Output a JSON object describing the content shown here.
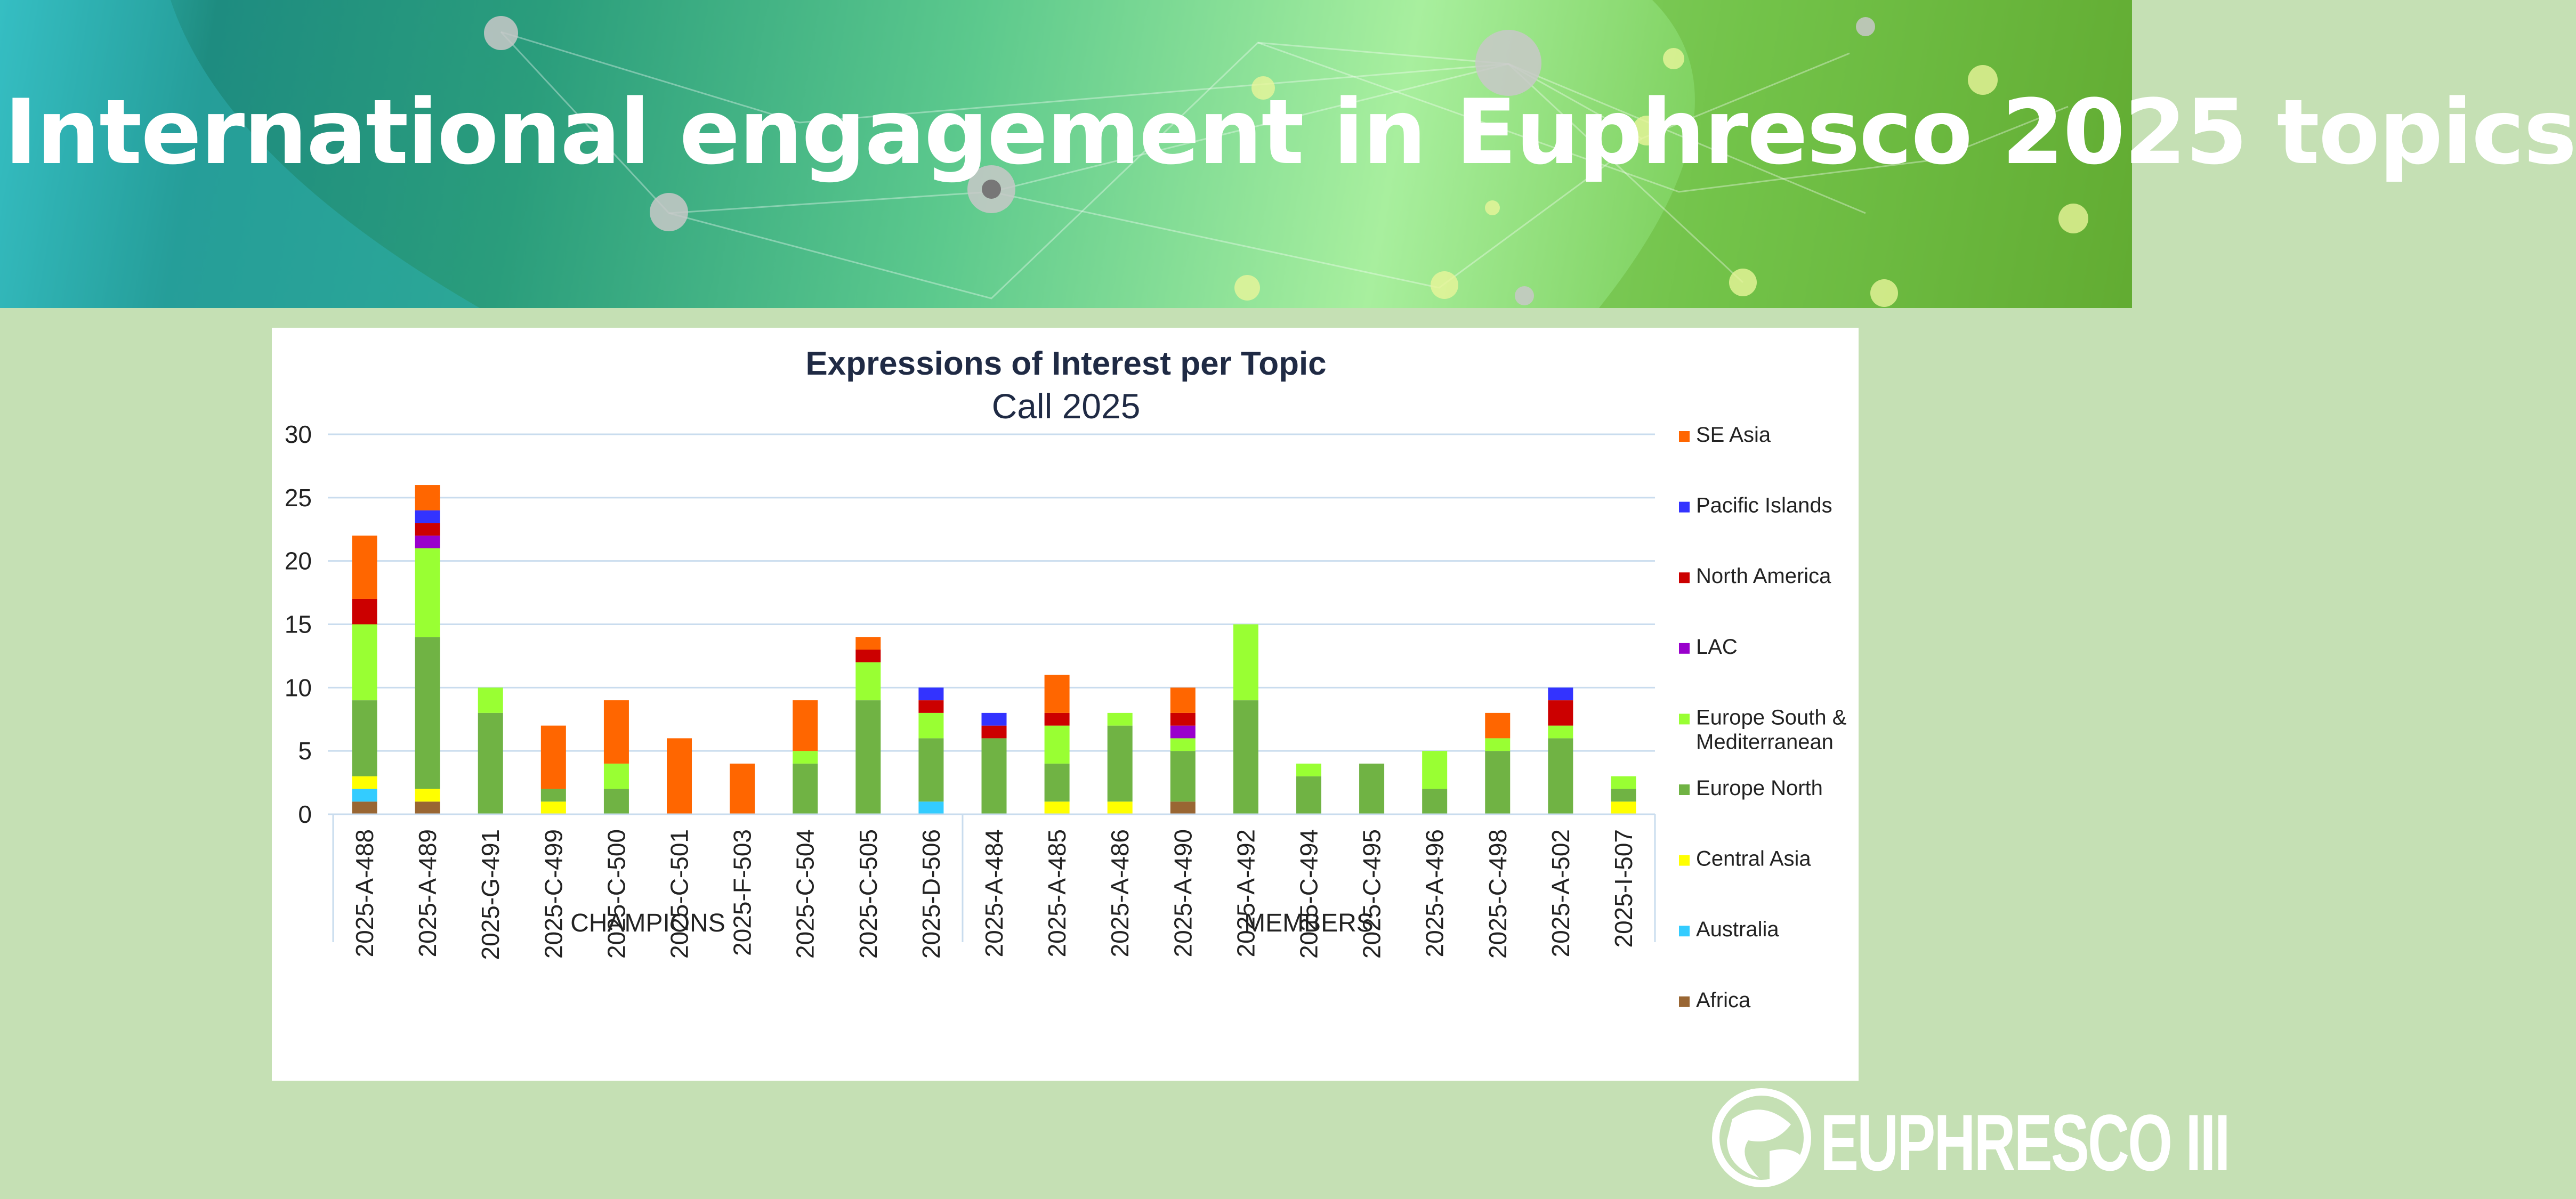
{
  "slide": {
    "title": "International engagement in Euphresco 2025 topics",
    "logo_text": "EUPHRESCO III"
  },
  "chart_data": {
    "type": "bar",
    "stacked": true,
    "title": "Expressions of Interest per Topic",
    "subtitle": "Call 2025",
    "xlabel": "",
    "ylabel": "",
    "ylim": [
      0,
      30
    ],
    "yticks": [
      0,
      5,
      10,
      15,
      20,
      25,
      30
    ],
    "grid": true,
    "legend_position": "right",
    "categories": [
      "2025-A-488",
      "2025-A-489",
      "2025-G-491",
      "2025-C-499",
      "2025-C-500",
      "2025-C-501",
      "2025-F-503",
      "2025-C-504",
      "2025-C-505",
      "2025-D-506",
      "2025-A-484",
      "2025-A-485",
      "2025-A-486",
      "2025-A-490",
      "2025-A-492",
      "2025-C-494",
      "2025-C-495",
      "2025-A-496",
      "2025-C-498",
      "2025-A-502",
      "2025-I-507"
    ],
    "groups": [
      {
        "label": "CHAMPIONS",
        "count": 10
      },
      {
        "label": "MEMBERS",
        "count": 11
      }
    ],
    "series": [
      {
        "name": "Africa",
        "color": "#996633",
        "values": [
          1,
          1,
          0,
          0,
          0,
          0,
          0,
          0,
          0,
          0,
          0,
          0,
          0,
          1,
          0,
          0,
          0,
          0,
          0,
          0,
          0
        ]
      },
      {
        "name": "Australia",
        "color": "#33ccff",
        "values": [
          1,
          0,
          0,
          0,
          0,
          0,
          0,
          0,
          0,
          1,
          0,
          0,
          0,
          0,
          0,
          0,
          0,
          0,
          0,
          0,
          0
        ]
      },
      {
        "name": "Central Asia",
        "color": "#ffff00",
        "values": [
          1,
          1,
          0,
          1,
          0,
          0,
          0,
          0,
          0,
          0,
          0,
          1,
          1,
          0,
          0,
          0,
          0,
          0,
          0,
          0,
          1
        ]
      },
      {
        "name": "Europe North",
        "color": "#70b344",
        "values": [
          6,
          12,
          8,
          1,
          2,
          0,
          0,
          4,
          9,
          5,
          6,
          3,
          6,
          4,
          9,
          3,
          4,
          2,
          5,
          6,
          1
        ]
      },
      {
        "name": "Europe South & Mediterranean",
        "color": "#99ff33",
        "values": [
          6,
          7,
          2,
          0,
          2,
          0,
          0,
          1,
          3,
          2,
          0,
          3,
          1,
          1,
          6,
          1,
          0,
          3,
          1,
          1,
          1
        ]
      },
      {
        "name": "LAC",
        "color": "#9900cc",
        "values": [
          0,
          1,
          0,
          0,
          0,
          0,
          0,
          0,
          0,
          0,
          0,
          0,
          0,
          1,
          0,
          0,
          0,
          0,
          0,
          0,
          0
        ]
      },
      {
        "name": "North America",
        "color": "#cc0000",
        "values": [
          2,
          1,
          0,
          0,
          0,
          0,
          0,
          0,
          1,
          1,
          1,
          1,
          0,
          1,
          0,
          0,
          0,
          0,
          0,
          2,
          0
        ]
      },
      {
        "name": "Pacific Islands",
        "color": "#3333ff",
        "values": [
          0,
          1,
          0,
          0,
          0,
          0,
          0,
          0,
          0,
          1,
          1,
          0,
          0,
          0,
          0,
          0,
          0,
          0,
          0,
          1,
          0
        ]
      },
      {
        "name": "SE Asia",
        "color": "#ff6600",
        "values": [
          5,
          2,
          0,
          5,
          5,
          6,
          4,
          4,
          1,
          0,
          0,
          3,
          0,
          2,
          0,
          0,
          0,
          0,
          2,
          0,
          0
        ]
      }
    ]
  }
}
